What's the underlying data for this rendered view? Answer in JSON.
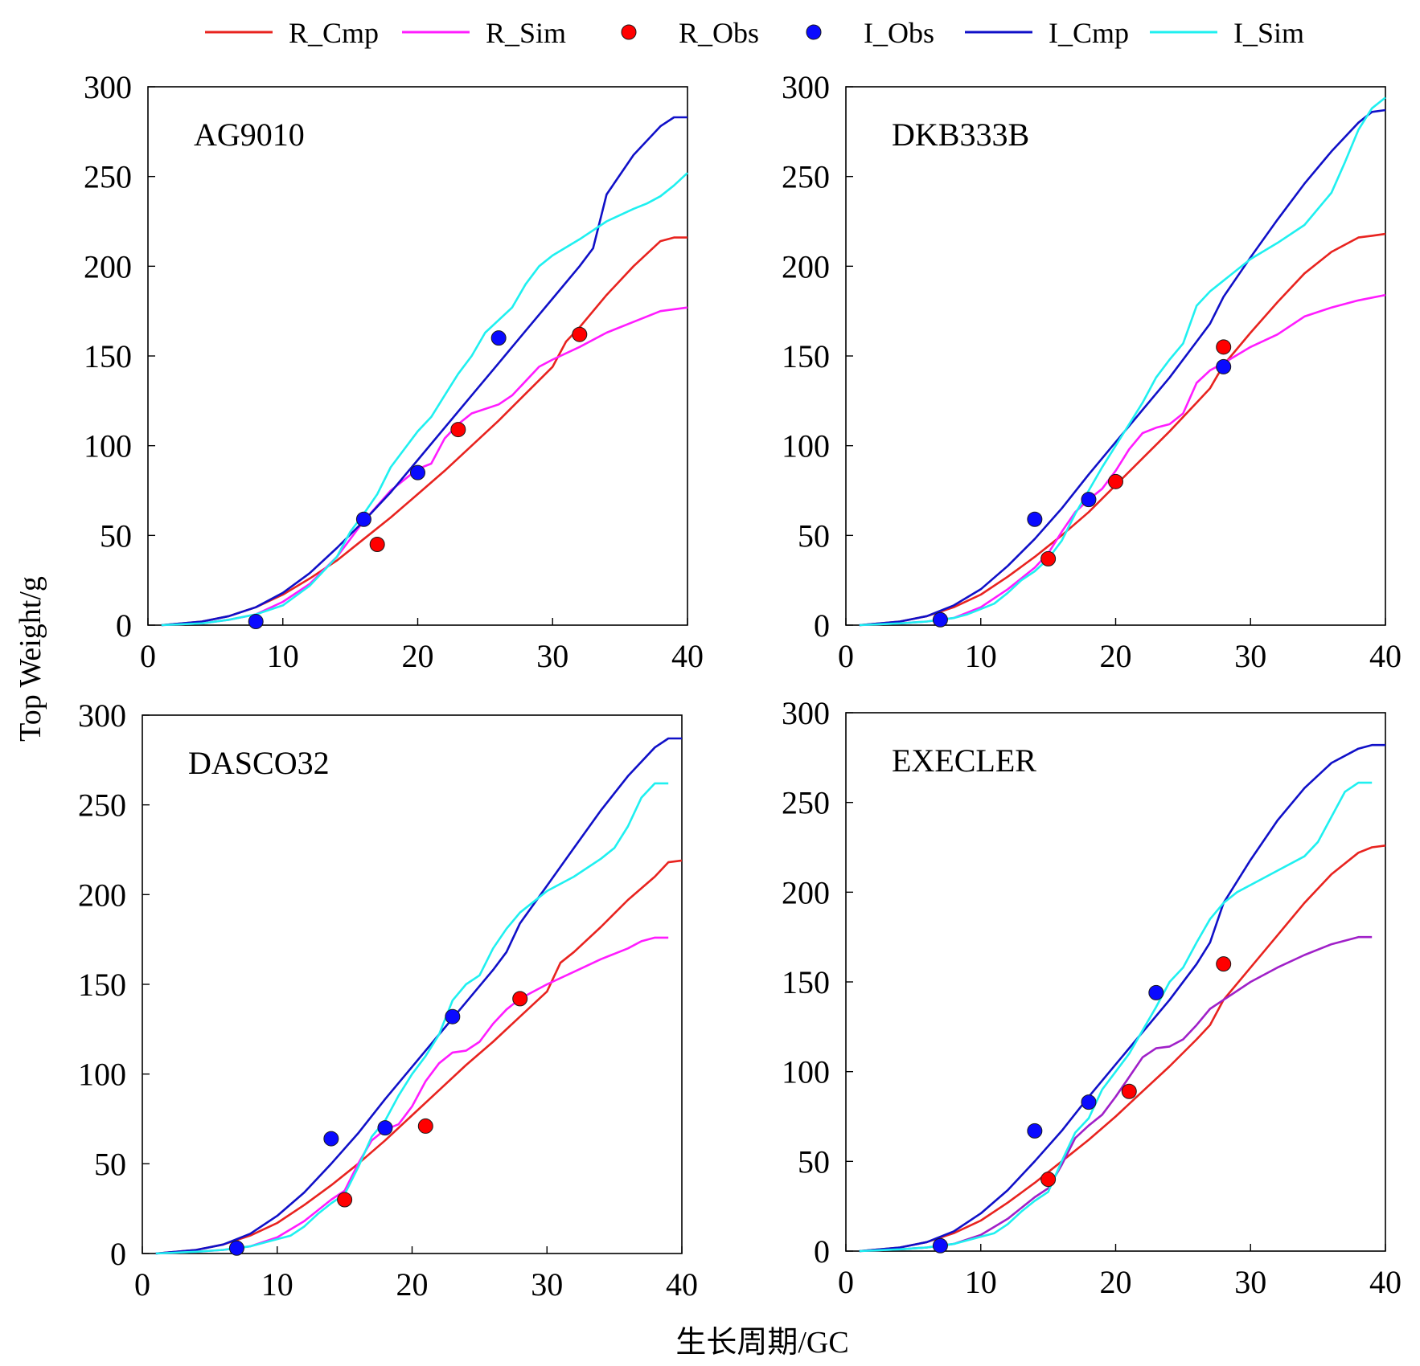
{
  "legend": {
    "placement": "top",
    "items": [
      {
        "label": "R_Cmp",
        "kind": "line",
        "color": "#e8231f"
      },
      {
        "label": "R_Sim",
        "kind": "line",
        "color": "#ff1cff"
      },
      {
        "label": "R_Obs",
        "kind": "marker",
        "color": "#ff0000"
      },
      {
        "label": "I_Obs",
        "kind": "marker",
        "color": "#0a0aff"
      },
      {
        "label": "I_Cmp",
        "kind": "line",
        "color": "#1010c8"
      },
      {
        "label": "I_Sim",
        "kind": "line",
        "color": "#1ff0f0"
      }
    ]
  },
  "ylabel": "Top Weight/g",
  "xlabel": "生长周期/GC",
  "chart_data": [
    {
      "type": "line",
      "title": "AG9010",
      "xlim": [
        0,
        40
      ],
      "ylim": [
        0,
        300
      ],
      "xticks": [
        0,
        10,
        20,
        30,
        40
      ],
      "yticks": [
        0,
        50,
        100,
        150,
        200,
        250,
        300
      ],
      "series": [
        {
          "name": "R_Cmp",
          "color": "#e8231f",
          "x": [
            1,
            4,
            6,
            8,
            10,
            12,
            14,
            16,
            18,
            20,
            22,
            24,
            26,
            28,
            30,
            31,
            32,
            34,
            36,
            38,
            39,
            40
          ],
          "y": [
            0,
            2,
            5,
            10,
            17,
            26,
            36,
            48,
            60,
            73,
            86,
            100,
            114,
            129,
            144,
            158,
            166,
            184,
            200,
            214,
            216,
            216
          ]
        },
        {
          "name": "R_Sim",
          "color": "#ff1cff",
          "x": [
            1,
            4,
            6,
            8,
            10,
            12,
            14,
            16,
            18,
            20,
            21,
            22,
            23,
            24,
            26,
            27,
            28,
            29,
            30,
            32,
            34,
            36,
            38,
            40
          ],
          "y": [
            0,
            1,
            3,
            6,
            13,
            23,
            38,
            58,
            75,
            87,
            90,
            104,
            112,
            118,
            123,
            128,
            136,
            144,
            148,
            155,
            163,
            169,
            175,
            177
          ]
        },
        {
          "name": "R_Obs",
          "color": "#ff0000",
          "x": [
            17,
            23,
            32
          ],
          "y": [
            45,
            109,
            162
          ]
        },
        {
          "name": "I_Cmp",
          "color": "#1010c8",
          "x": [
            1,
            4,
            6,
            8,
            10,
            12,
            14,
            16,
            18,
            20,
            22,
            24,
            26,
            28,
            30,
            32,
            33,
            34,
            36,
            38,
            39,
            40
          ],
          "y": [
            0,
            2,
            5,
            10,
            18,
            29,
            43,
            58,
            74,
            92,
            110,
            128,
            146,
            164,
            182,
            200,
            210,
            240,
            262,
            278,
            283,
            283
          ]
        },
        {
          "name": "I_Sim",
          "color": "#1ff0f0",
          "x": [
            1,
            4,
            6,
            8,
            10,
            12,
            14,
            15,
            16,
            17,
            18,
            19,
            20,
            21,
            22,
            23,
            24,
            25,
            26,
            27,
            28,
            29,
            30,
            32,
            34,
            36,
            37,
            38,
            39,
            40
          ],
          "y": [
            0,
            1,
            3,
            6,
            11,
            22,
            38,
            52,
            62,
            73,
            88,
            98,
            108,
            116,
            128,
            140,
            150,
            163,
            170,
            177,
            190,
            200,
            206,
            215,
            225,
            232,
            235,
            239,
            245,
            252
          ]
        },
        {
          "name": "I_Obs",
          "color": "#0a0aff",
          "x": [
            8,
            16,
            20,
            26
          ],
          "y": [
            2,
            59,
            85,
            160
          ]
        }
      ]
    },
    {
      "type": "line",
      "title": "DKB333B",
      "xlim": [
        0,
        40
      ],
      "ylim": [
        0,
        300
      ],
      "xticks": [
        0,
        10,
        20,
        30,
        40
      ],
      "yticks": [
        0,
        50,
        100,
        150,
        200,
        250,
        300
      ],
      "series": [
        {
          "name": "R_Cmp",
          "color": "#e8231f",
          "x": [
            1,
            4,
            6,
            8,
            10,
            12,
            14,
            16,
            18,
            20,
            22,
            24,
            26,
            27,
            28,
            30,
            32,
            34,
            36,
            38,
            39,
            40
          ],
          "y": [
            0,
            2,
            5,
            10,
            17,
            27,
            38,
            50,
            63,
            78,
            93,
            108,
            124,
            132,
            145,
            163,
            180,
            196,
            208,
            216,
            217,
            218
          ]
        },
        {
          "name": "R_Sim",
          "color": "#ff1cff",
          "x": [
            1,
            4,
            6,
            8,
            10,
            12,
            14,
            15,
            16,
            17,
            18,
            19,
            20,
            21,
            22,
            23,
            24,
            25,
            26,
            27,
            28,
            30,
            32,
            34,
            36,
            38,
            40
          ],
          "y": [
            0,
            1,
            2,
            4,
            10,
            20,
            32,
            40,
            52,
            63,
            70,
            76,
            86,
            98,
            107,
            110,
            112,
            118,
            135,
            142,
            146,
            155,
            162,
            172,
            177,
            181,
            184
          ]
        },
        {
          "name": "R_Obs",
          "color": "#ff0000",
          "x": [
            15,
            20,
            28
          ],
          "y": [
            37,
            80,
            155
          ]
        },
        {
          "name": "I_Cmp",
          "color": "#1010c8",
          "x": [
            1,
            4,
            6,
            8,
            10,
            12,
            14,
            16,
            18,
            20,
            22,
            24,
            26,
            27,
            28,
            30,
            32,
            34,
            36,
            38,
            39,
            40
          ],
          "y": [
            0,
            2,
            5,
            11,
            20,
            33,
            48,
            65,
            84,
            102,
            120,
            138,
            158,
            168,
            183,
            205,
            226,
            246,
            264,
            280,
            286,
            287
          ]
        },
        {
          "name": "I_Sim",
          "color": "#1ff0f0",
          "x": [
            1,
            4,
            6,
            8,
            9,
            10,
            11,
            12,
            13,
            14,
            15,
            16,
            17,
            18,
            19,
            20,
            21,
            22,
            23,
            24,
            25,
            26,
            27,
            28,
            30,
            32,
            34,
            36,
            37,
            38,
            39,
            40
          ],
          "y": [
            0,
            1,
            2,
            4,
            6,
            9,
            12,
            18,
            25,
            30,
            37,
            47,
            62,
            75,
            88,
            100,
            112,
            124,
            138,
            148,
            157,
            178,
            186,
            192,
            204,
            213,
            223,
            241,
            258,
            276,
            288,
            294
          ]
        },
        {
          "name": "I_Obs",
          "color": "#0a0aff",
          "x": [
            7,
            14,
            18,
            28
          ],
          "y": [
            3,
            59,
            70,
            144
          ]
        }
      ]
    },
    {
      "type": "line",
      "title": "DASCO32",
      "xlim": [
        0,
        40
      ],
      "ylim": [
        0,
        300
      ],
      "xticks": [
        0,
        10,
        20,
        30,
        40
      ],
      "yticks": [
        0,
        50,
        100,
        150,
        200,
        250,
        300
      ],
      "series": [
        {
          "name": "R_Cmp",
          "color": "#e8231f",
          "x": [
            1,
            4,
            6,
            8,
            10,
            12,
            14,
            16,
            18,
            20,
            22,
            24,
            26,
            28,
            30,
            31,
            32,
            34,
            36,
            38,
            39,
            40
          ],
          "y": [
            0,
            2,
            5,
            10,
            17,
            27,
            38,
            50,
            63,
            77,
            91,
            105,
            118,
            132,
            146,
            162,
            168,
            182,
            197,
            210,
            218,
            219
          ]
        },
        {
          "name": "R_Sim",
          "color": "#ff1cff",
          "x": [
            1,
            4,
            6,
            8,
            10,
            12,
            14,
            15,
            16,
            17,
            18,
            19,
            20,
            21,
            22,
            23,
            24,
            25,
            26,
            27,
            28,
            30,
            32,
            34,
            36,
            37,
            38,
            39
          ],
          "y": [
            0,
            1,
            2,
            4,
            9,
            18,
            30,
            35,
            50,
            63,
            69,
            72,
            82,
            96,
            106,
            112,
            113,
            118,
            128,
            136,
            142,
            150,
            157,
            164,
            170,
            174,
            176,
            176
          ]
        },
        {
          "name": "R_Obs",
          "color": "#ff0000",
          "x": [
            15,
            21,
            28
          ],
          "y": [
            30,
            71,
            142
          ]
        },
        {
          "name": "I_Cmp",
          "color": "#1010c8",
          "x": [
            1,
            4,
            6,
            8,
            10,
            12,
            14,
            16,
            18,
            20,
            22,
            24,
            26,
            27,
            28,
            30,
            32,
            34,
            36,
            38,
            39,
            40
          ],
          "y": [
            0,
            2,
            5,
            11,
            21,
            34,
            50,
            67,
            86,
            104,
            122,
            140,
            158,
            168,
            184,
            205,
            226,
            247,
            266,
            282,
            287,
            287
          ]
        },
        {
          "name": "I_Sim",
          "color": "#1ff0f0",
          "x": [
            1,
            4,
            6,
            8,
            9,
            10,
            11,
            12,
            13,
            14,
            15,
            16,
            17,
            18,
            19,
            20,
            21,
            22,
            23,
            24,
            25,
            26,
            27,
            28,
            29,
            30,
            32,
            34,
            35,
            36,
            37,
            38,
            39
          ],
          "y": [
            0,
            1,
            2,
            4,
            6,
            8,
            10,
            15,
            22,
            28,
            33,
            48,
            65,
            74,
            88,
            100,
            110,
            122,
            141,
            150,
            155,
            170,
            181,
            190,
            196,
            202,
            210,
            220,
            226,
            238,
            254,
            262,
            262
          ]
        },
        {
          "name": "I_Obs",
          "color": "#0a0aff",
          "x": [
            7,
            14,
            18,
            23
          ],
          "y": [
            3,
            64,
            70,
            132
          ]
        }
      ]
    },
    {
      "type": "line",
      "title": "EXECLER",
      "xlim": [
        0,
        40
      ],
      "ylim": [
        0,
        300
      ],
      "xticks": [
        0,
        10,
        20,
        30,
        40
      ],
      "yticks": [
        0,
        50,
        100,
        150,
        200,
        250,
        300
      ],
      "series": [
        {
          "name": "R_Cmp",
          "color": "#e8231f",
          "x": [
            1,
            4,
            6,
            8,
            10,
            12,
            14,
            16,
            18,
            20,
            22,
            24,
            26,
            27,
            28,
            30,
            32,
            34,
            36,
            38,
            39,
            40
          ],
          "y": [
            0,
            2,
            5,
            10,
            17,
            27,
            38,
            50,
            62,
            75,
            89,
            103,
            118,
            126,
            140,
            158,
            176,
            194,
            210,
            222,
            225,
            226
          ]
        },
        {
          "name": "R_Sim",
          "color": "#a020c8",
          "x": [
            1,
            4,
            6,
            8,
            10,
            12,
            14,
            15,
            16,
            17,
            18,
            19,
            20,
            21,
            22,
            23,
            24,
            25,
            26,
            27,
            28,
            30,
            32,
            34,
            36,
            38,
            39
          ],
          "y": [
            0,
            1,
            2,
            4,
            9,
            18,
            30,
            35,
            48,
            63,
            70,
            76,
            86,
            97,
            108,
            113,
            114,
            118,
            126,
            135,
            140,
            150,
            158,
            165,
            171,
            175,
            175
          ]
        },
        {
          "name": "R_Obs",
          "color": "#ff0000",
          "x": [
            15,
            21,
            28
          ],
          "y": [
            40,
            89,
            160
          ]
        },
        {
          "name": "I_Cmp",
          "color": "#1010c8",
          "x": [
            1,
            4,
            6,
            8,
            10,
            12,
            14,
            16,
            18,
            20,
            22,
            24,
            26,
            27,
            28,
            30,
            32,
            34,
            36,
            38,
            39,
            40
          ],
          "y": [
            0,
            2,
            5,
            11,
            21,
            34,
            50,
            67,
            86,
            104,
            122,
            140,
            160,
            172,
            194,
            218,
            240,
            258,
            272,
            280,
            282,
            282
          ]
        },
        {
          "name": "I_Sim",
          "color": "#1ff0f0",
          "x": [
            1,
            4,
            6,
            8,
            9,
            10,
            11,
            12,
            13,
            14,
            15,
            16,
            17,
            18,
            19,
            20,
            21,
            22,
            23,
            24,
            25,
            26,
            27,
            28,
            29,
            30,
            32,
            34,
            35,
            36,
            37,
            38,
            39
          ],
          "y": [
            0,
            1,
            2,
            4,
            6,
            8,
            10,
            15,
            22,
            28,
            33,
            50,
            66,
            74,
            90,
            100,
            110,
            123,
            136,
            150,
            158,
            172,
            185,
            194,
            200,
            204,
            212,
            220,
            228,
            242,
            256,
            261,
            261
          ]
        },
        {
          "name": "I_Obs",
          "color": "#0a0aff",
          "x": [
            7,
            14,
            18,
            23
          ],
          "y": [
            3,
            67,
            83,
            144
          ]
        }
      ]
    }
  ]
}
